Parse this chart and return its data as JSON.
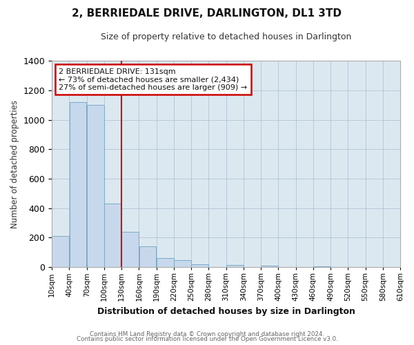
{
  "title": "2, BERRIEDALE DRIVE, DARLINGTON, DL1 3TD",
  "subtitle": "Size of property relative to detached houses in Darlington",
  "xlabel": "Distribution of detached houses by size in Darlington",
  "ylabel": "Number of detached properties",
  "bar_color": "#c8d8ec",
  "bar_edge_color": "#7aaac8",
  "background_color": "#ffffff",
  "plot_bg_color": "#dce8f0",
  "annotation_box_text": "2 BERRIEDALE DRIVE: 131sqm\n← 73% of detached houses are smaller (2,434)\n27% of semi-detached houses are larger (909) →",
  "annotation_box_color": "#ffffff",
  "annotation_box_edge_color": "#cc0000",
  "property_line_x": 130,
  "property_line_color": "#cc0000",
  "tick_labels": [
    "10sqm",
    "40sqm",
    "70sqm",
    "100sqm",
    "130sqm",
    "160sqm",
    "190sqm",
    "220sqm",
    "250sqm",
    "280sqm",
    "310sqm",
    "340sqm",
    "370sqm",
    "400sqm",
    "430sqm",
    "460sqm",
    "490sqm",
    "520sqm",
    "550sqm",
    "580sqm",
    "610sqm"
  ],
  "bin_edges": [
    10,
    40,
    70,
    100,
    130,
    160,
    190,
    220,
    250,
    280,
    310,
    340,
    370,
    400,
    430,
    460,
    490,
    520,
    550,
    580,
    610
  ],
  "bar_heights": [
    210,
    1120,
    1100,
    430,
    240,
    140,
    60,
    48,
    22,
    0,
    15,
    0,
    10,
    0,
    0,
    8,
    0,
    0,
    0,
    0
  ],
  "ylim": [
    0,
    1400
  ],
  "yticks": [
    0,
    200,
    400,
    600,
    800,
    1000,
    1200,
    1400
  ],
  "footer_line1": "Contains HM Land Registry data © Crown copyright and database right 2024.",
  "footer_line2": "Contains public sector information licensed under the Open Government Licence v3.0."
}
